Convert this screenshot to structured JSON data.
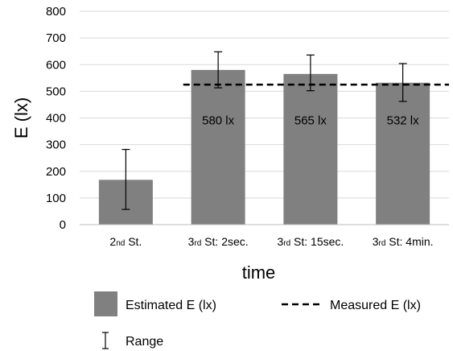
{
  "chart_data": {
    "type": "bar",
    "xlabel": "time",
    "ylabel": "E (lx)",
    "ylim": [
      0,
      800
    ],
    "yticks": [
      0,
      100,
      200,
      300,
      400,
      500,
      600,
      700,
      800
    ],
    "categories": [
      {
        "main": "2",
        "sub": "nd",
        "rest": " St."
      },
      {
        "main": "3",
        "sub": "rd",
        "rest": " St: 2sec."
      },
      {
        "main": "3",
        "sub": "rd",
        "rest": " St: 15sec."
      },
      {
        "main": "3",
        "sub": "rd",
        "rest": " St: 4min."
      }
    ],
    "series": [
      {
        "name": "Estimated E (lx)",
        "kind": "bar",
        "color": "#808080",
        "values": [
          168,
          580,
          565,
          532
        ],
        "labels": [
          "",
          "580 lx",
          "565 lx",
          "532 lx"
        ],
        "range_low": [
          57,
          513,
          502,
          462
        ],
        "range_high": [
          282,
          648,
          636,
          604
        ]
      },
      {
        "name": "Measured E (lx)",
        "kind": "dashed-line",
        "color": "#000000",
        "value": 525,
        "x_from_category": 1
      }
    ],
    "range_legend": "Range",
    "grid": true,
    "legend_position": "bottom"
  }
}
